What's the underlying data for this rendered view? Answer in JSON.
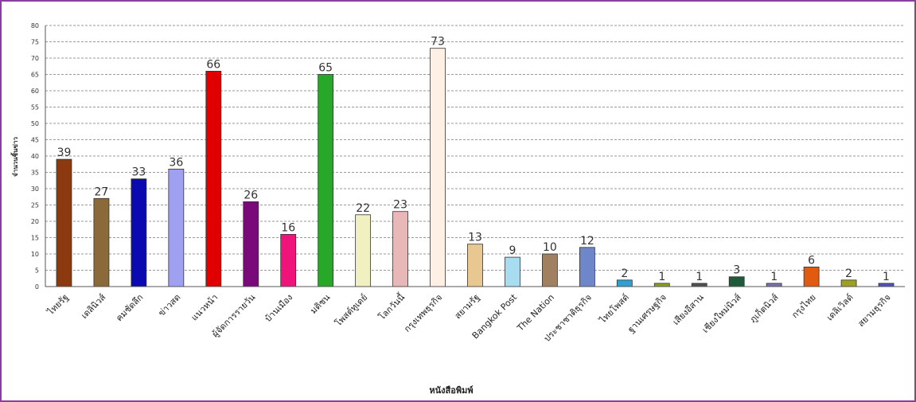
{
  "chart_data": {
    "type": "bar",
    "xlabel": "หนังสือพิมพ์",
    "ylabel": "จำนวนชิ้นข่าว",
    "ylim": [
      0,
      80
    ],
    "ytick_step": 5,
    "grid": true,
    "categories": [
      "ไทยรัฐ",
      "เดลินิวส์",
      "คมชัดลึก",
      "ข่าวสด",
      "แนวหน้า",
      "ผู้จัดการรายวัน",
      "บ้านเมือง",
      "มติชน",
      "โพสต์ทูเดย์",
      "โลกวันนี้",
      "กรุงเทพธุรกิจ",
      "สยามรัฐ",
      "Bangkok Post",
      "The Nation",
      "ประชาชาติธุรกิจ",
      "ไทยโพสต์",
      "ฐานเศรษฐกิจ",
      "เสียงอีสาน",
      "เชียงใหม่นิวส์",
      "ภูเก็ตนิวส์",
      "กรุงไทย",
      "เดลิเวิลด์",
      "สยามธุรกิจ"
    ],
    "values": [
      39,
      27,
      33,
      36,
      66,
      26,
      16,
      65,
      22,
      23,
      73,
      13,
      9,
      10,
      12,
      2,
      1,
      1,
      3,
      1,
      6,
      2,
      1
    ],
    "colors": [
      "#8B3A0F",
      "#8B6A3A",
      "#0A0AB0",
      "#A0A0F0",
      "#E00000",
      "#7A0A7A",
      "#F0147A",
      "#28A828",
      "#F0F0C0",
      "#E8B8B8",
      "#FFF0E6",
      "#E8C890",
      "#A8DCF0",
      "#A08060",
      "#6F86C8",
      "#2FA0D0",
      "#8BA020",
      "#505050",
      "#1F5A3A",
      "#7A70B0",
      "#E05A10",
      "#A0A020",
      "#5050C0"
    ]
  }
}
